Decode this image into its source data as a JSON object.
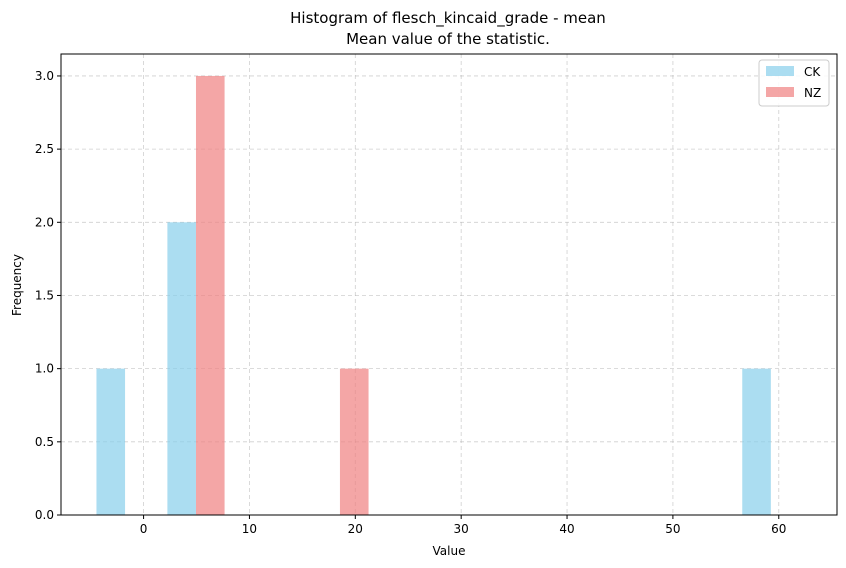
{
  "chart_data": {
    "type": "bar",
    "title": "Histogram of flesch_kincaid_grade - mean",
    "subtitle": "Mean value of the statistic.",
    "xlabel": "Value",
    "ylabel": "Frequency",
    "xlim": [
      -7.8,
      65.5
    ],
    "ylim": [
      0,
      3.15
    ],
    "xticks": [
      0,
      10,
      20,
      30,
      40,
      50,
      60
    ],
    "yticks": [
      "0.0",
      "0.5",
      "1.0",
      "1.5",
      "2.0",
      "2.5",
      "3.0"
    ],
    "grid": true,
    "legend_position": "top-right",
    "bar_width": 2.7,
    "series": [
      {
        "name": "CK",
        "color": "#87ceeb",
        "bars": [
          {
            "x": -3.1,
            "value": 1
          },
          {
            "x": 3.6,
            "value": 2
          },
          {
            "x": 57.9,
            "value": 1
          }
        ]
      },
      {
        "name": "NZ",
        "color": "#f08080",
        "bars": [
          {
            "x": 6.3,
            "value": 3
          },
          {
            "x": 19.9,
            "value": 1
          }
        ]
      }
    ]
  }
}
